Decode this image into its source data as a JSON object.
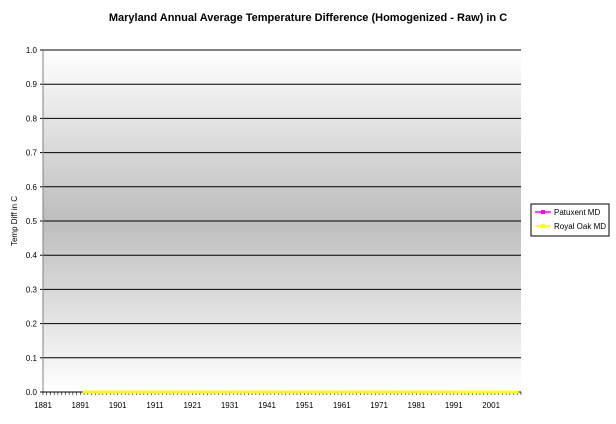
{
  "chart_data": {
    "type": "line",
    "title": "Maryland Annual Average Temperature Difference (Homogenized - Raw) in C",
    "xlabel": "",
    "ylabel": "Temp Diff in C",
    "ylim": [
      0,
      1.0
    ],
    "yticks": [
      "0.0",
      "0.1",
      "0.2",
      "0.3",
      "0.4",
      "0.5",
      "0.6",
      "0.7",
      "0.8",
      "0.9",
      "1.0"
    ],
    "xlim": [
      1881,
      2009
    ],
    "xticks": [
      "1881",
      "1891",
      "1901",
      "1911",
      "1921",
      "1931",
      "1941",
      "1951",
      "1961",
      "1971",
      "1981",
      "1991",
      "2001"
    ],
    "grid": true,
    "legend_position": "right",
    "series": [
      {
        "name": "Patuxent MD",
        "color": "#ff00ff",
        "x_start": 1892,
        "x_end": 1991,
        "value": 0.0
      },
      {
        "name": "Royal Oak MD",
        "color": "#ffff00",
        "x_start": 1892,
        "x_end": 2008,
        "value": 0.0
      }
    ]
  }
}
